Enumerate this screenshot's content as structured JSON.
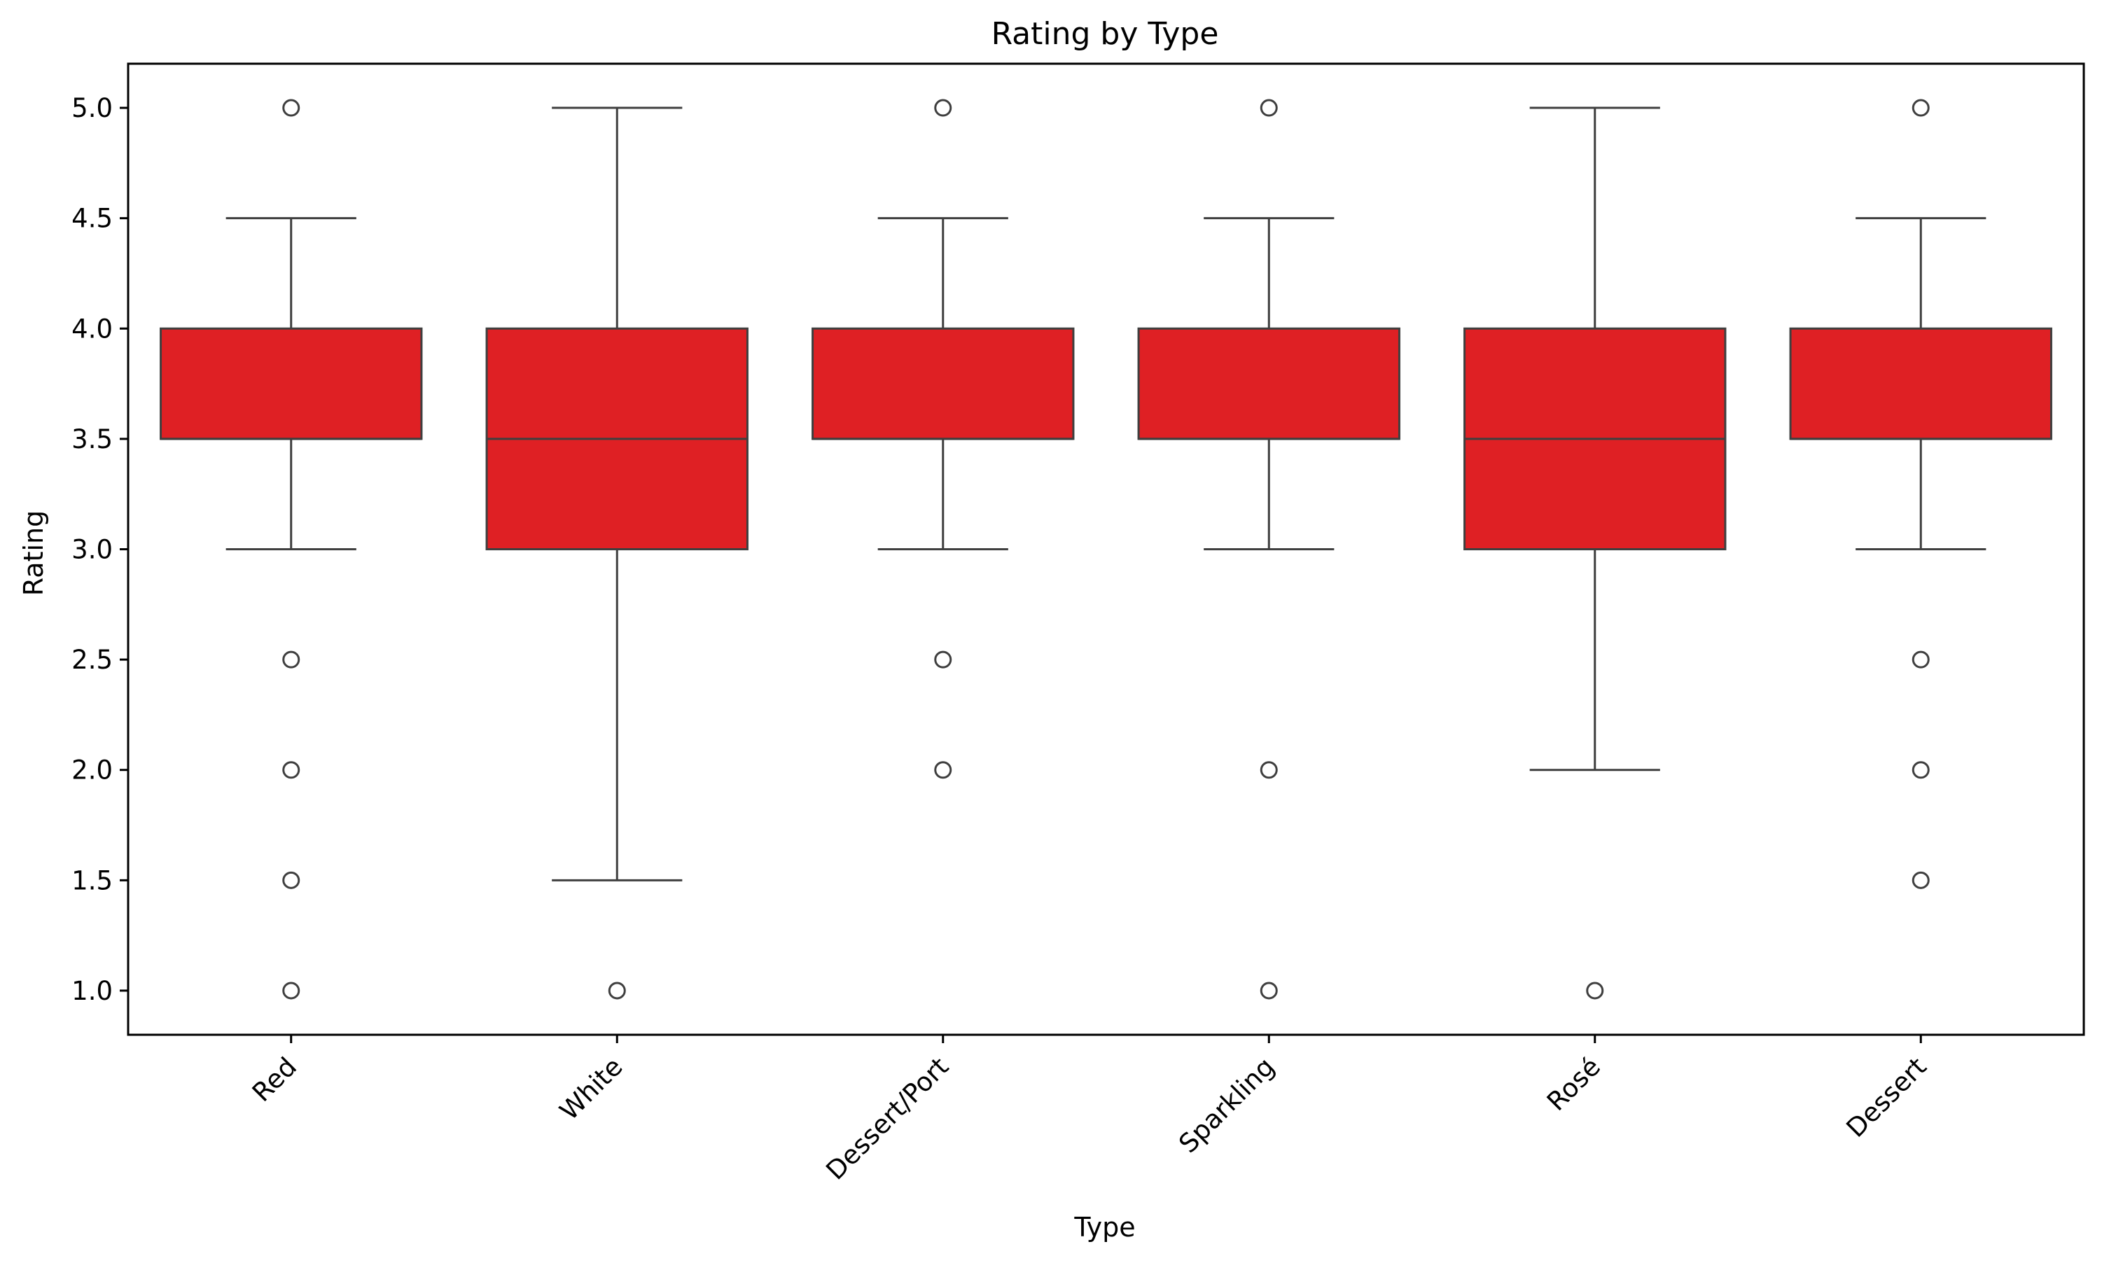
{
  "chart_data": {
    "type": "box",
    "title": "Rating by Type",
    "xlabel": "Type",
    "ylabel": "Rating",
    "categories": [
      "Red",
      "White",
      "Dessert/Port",
      "Sparkling",
      "Rosé",
      "Dessert"
    ],
    "ylim": [
      0.8,
      5.2
    ],
    "yticks": [
      "1.0",
      "1.5",
      "2.0",
      "2.5",
      "3.0",
      "3.5",
      "4.0",
      "4.5",
      "5.0"
    ],
    "box_color": "#df2024",
    "line_color": "#3f3f3f",
    "grid": false,
    "boxes": [
      {
        "category": "Red",
        "whisker_low": 3.0,
        "q1": 3.5,
        "median": 3.5,
        "q3": 4.0,
        "whisker_high": 4.5,
        "outliers": [
          5.0,
          2.5,
          2.0,
          1.5,
          1.0
        ]
      },
      {
        "category": "White",
        "whisker_low": 1.5,
        "q1": 3.0,
        "median": 3.5,
        "q3": 4.0,
        "whisker_high": 5.0,
        "outliers": [
          1.0
        ]
      },
      {
        "category": "Dessert/Port",
        "whisker_low": 3.0,
        "q1": 3.5,
        "median": 3.5,
        "q3": 4.0,
        "whisker_high": 4.5,
        "outliers": [
          5.0,
          2.5,
          2.0
        ]
      },
      {
        "category": "Sparkling",
        "whisker_low": 3.0,
        "q1": 3.5,
        "median": 3.5,
        "q3": 4.0,
        "whisker_high": 4.5,
        "outliers": [
          5.0,
          2.0,
          1.0
        ]
      },
      {
        "category": "Rosé",
        "whisker_low": 2.0,
        "q1": 3.0,
        "median": 3.5,
        "q3": 4.0,
        "whisker_high": 5.0,
        "outliers": [
          1.0
        ]
      },
      {
        "category": "Dessert",
        "whisker_low": 3.0,
        "q1": 3.5,
        "median": 3.5,
        "q3": 4.0,
        "whisker_high": 4.5,
        "outliers": [
          5.0,
          2.5,
          2.0,
          1.5
        ]
      }
    ]
  }
}
